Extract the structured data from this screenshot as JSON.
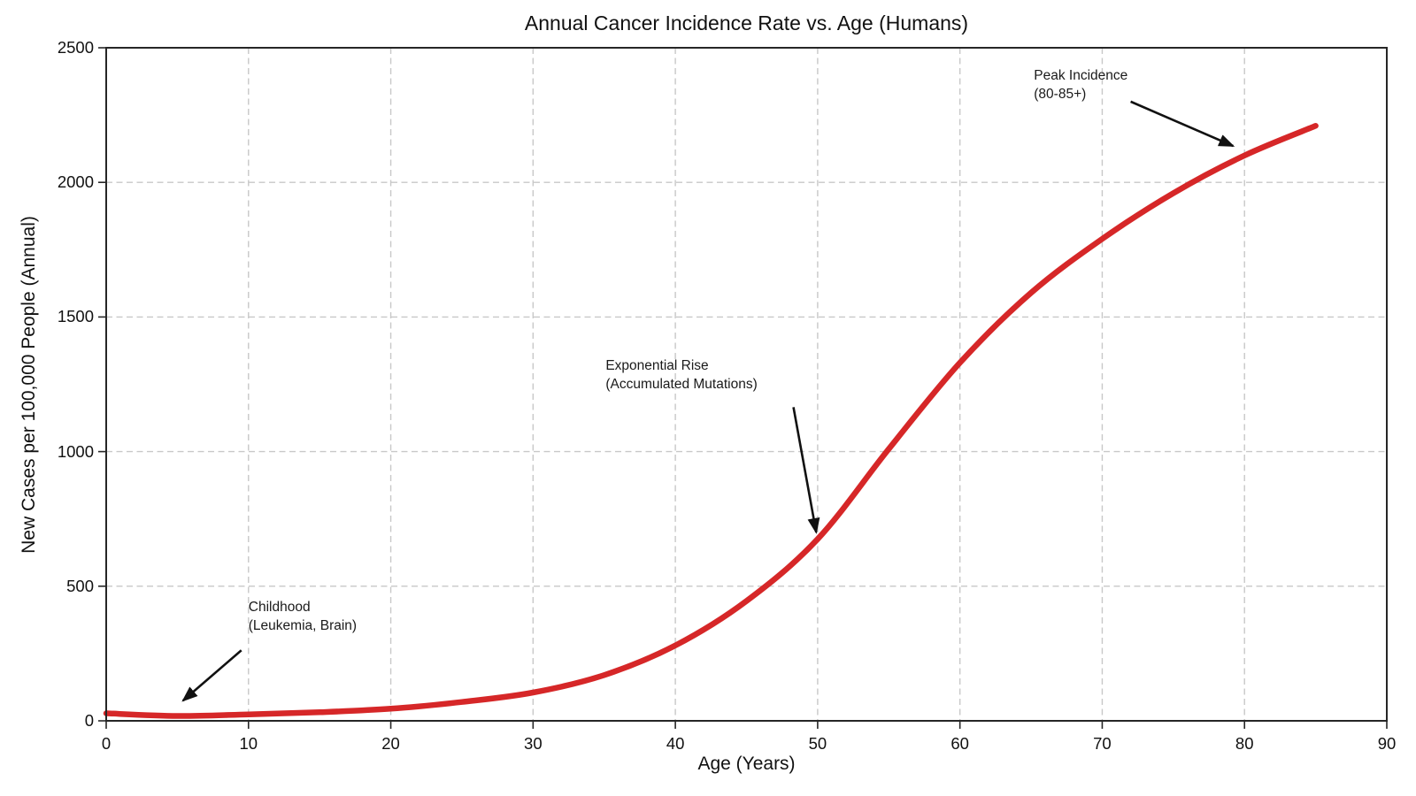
{
  "chart_data": {
    "type": "line",
    "title": "Annual Cancer Incidence Rate vs. Age (Humans)",
    "xlabel": "Age (Years)",
    "ylabel": "New Cases per 100,000 People (Annual)",
    "xlim": [
      0,
      90
    ],
    "ylim": [
      0,
      2500
    ],
    "x_ticks": [
      0,
      10,
      20,
      30,
      40,
      50,
      60,
      70,
      80,
      90
    ],
    "y_ticks": [
      0,
      500,
      1000,
      1500,
      2000,
      2500
    ],
    "grid": "dashed",
    "legend": "none",
    "series": [
      {
        "name": "Annual cancer incidence rate",
        "color": "#d62728",
        "x": [
          0,
          5,
          10,
          15,
          20,
          25,
          30,
          35,
          40,
          45,
          50,
          55,
          60,
          65,
          70,
          75,
          80,
          85
        ],
        "y": [
          28,
          18,
          24,
          32,
          45,
          70,
          105,
          170,
          280,
          445,
          675,
          1010,
          1330,
          1590,
          1790,
          1960,
          2100,
          2210
        ]
      }
    ],
    "annotations": [
      {
        "lines": [
          "Childhood",
          "(Leukemia, Brain)"
        ],
        "text_at": {
          "age": 10.0,
          "value": 455
        },
        "arrow_from": {
          "age": 9.5,
          "value": 262
        },
        "arrow_to": {
          "age": 5.4,
          "value": 75
        }
      },
      {
        "lines": [
          "Exponential Rise",
          "(Accumulated Mutations)"
        ],
        "text_at": {
          "age": 35.1,
          "value": 1355
        },
        "arrow_from": {
          "age": 48.3,
          "value": 1165
        },
        "arrow_to": {
          "age": 49.9,
          "value": 700
        }
      },
      {
        "lines": [
          "Peak Incidence",
          "(80-85+)"
        ],
        "text_at": {
          "age": 65.2,
          "value": 2430
        },
        "arrow_from": {
          "age": 72.0,
          "value": 2300
        },
        "arrow_to": {
          "age": 79.2,
          "value": 2135
        }
      }
    ]
  },
  "colors": {
    "curve": "#d62728",
    "grid": "#c8c8c8",
    "spine": "#262626",
    "text": "#111111",
    "arrow": "#111111"
  }
}
